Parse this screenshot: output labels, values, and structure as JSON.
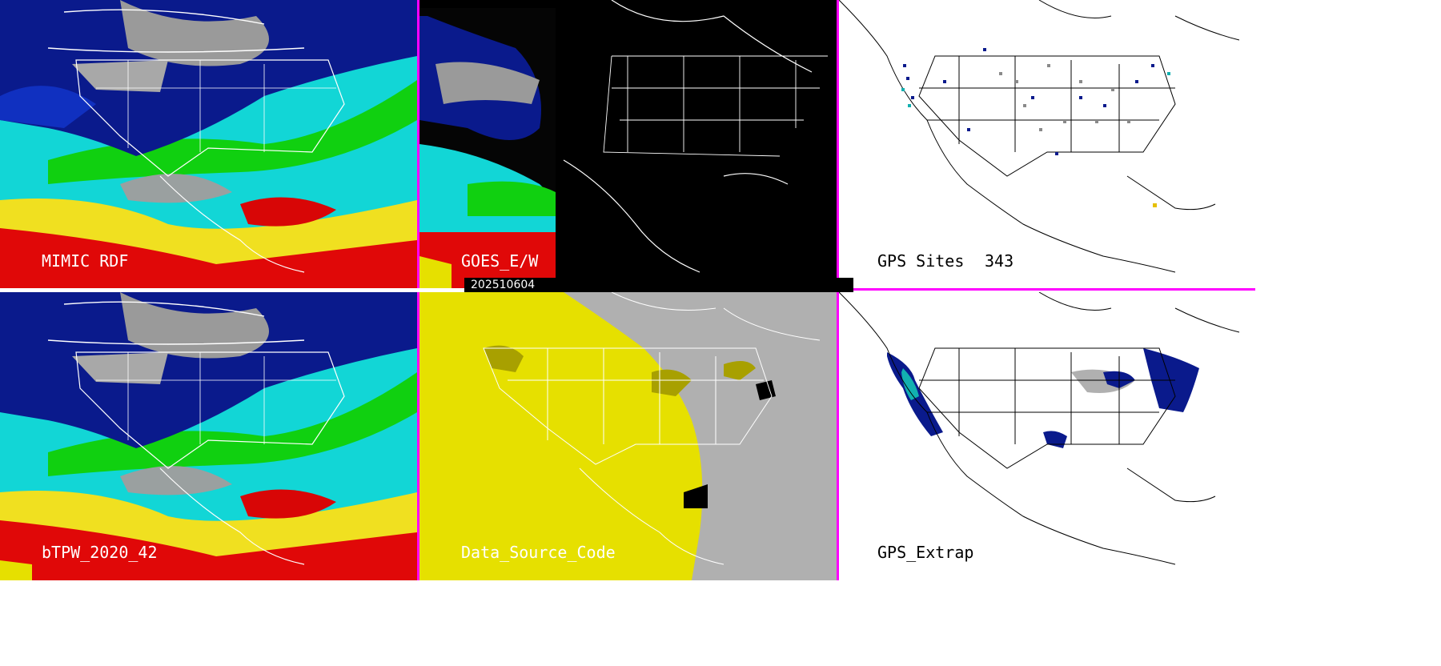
{
  "colors": {
    "separator": "#ff00ff",
    "ocean_moist": "#12d6d6",
    "very_moist": "#e00808",
    "moderate": "#10d010",
    "dry": "#0a1a8c",
    "driest": "#9a9a9a",
    "land_gray": "#b0b0b0",
    "source_yellow": "#e6e000",
    "source_olive": "#a8a000"
  },
  "panels": {
    "mimic": {
      "label": "MIMIC RDF"
    },
    "goes": {
      "label": "GOES_E/W",
      "date": "202510604"
    },
    "gps_sites": {
      "label": "GPS Sites",
      "count": "343"
    },
    "btpw": {
      "label": "bTPW_2020_42"
    },
    "source": {
      "label": "Data_Source_Code"
    },
    "gps_extrap": {
      "label": "GPS_Extrap"
    }
  }
}
